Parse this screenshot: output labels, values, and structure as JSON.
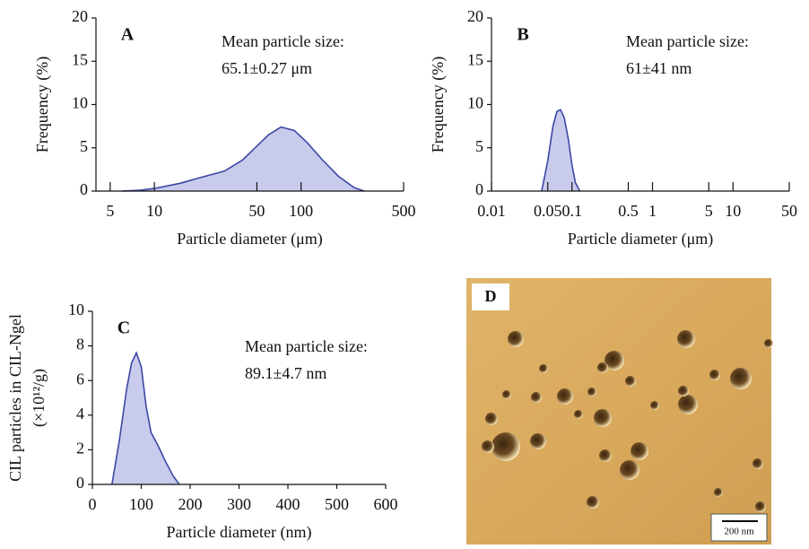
{
  "chart_data": [
    {
      "type": "area",
      "label": "A",
      "log_x": true,
      "color": "#3b47a3",
      "fill": "#c9cbec",
      "ylabel": [
        "Frequency (%)"
      ],
      "xlabel": "Particle diameter (μm)",
      "annotation": [
        "Mean particle size:",
        "65.1±0.27 μm"
      ],
      "x": [
        6,
        8,
        10,
        15,
        20,
        30,
        40,
        50,
        60,
        73,
        90,
        110,
        140,
        180,
        230,
        270
      ],
      "values": [
        0,
        0.1,
        0.3,
        0.9,
        1.5,
        2.3,
        3.6,
        5.2,
        6.5,
        7.4,
        7.0,
        5.6,
        3.6,
        1.7,
        0.4,
        0
      ],
      "xlim": [
        4,
        500
      ],
      "xticks": [
        5,
        10,
        50,
        100,
        500
      ],
      "ylim": [
        0,
        20
      ],
      "yticks": [
        0,
        5,
        10,
        15,
        20
      ]
    },
    {
      "type": "area",
      "label": "B",
      "log_x": true,
      "color": "#3b47a3",
      "fill": "#c9cbec",
      "ylabel": [
        "Frequency (%)"
      ],
      "xlabel": "Particle diameter (μm)",
      "annotation": [
        "Mean particle size:",
        "61±41 nm"
      ],
      "x": [
        0.042,
        0.05,
        0.058,
        0.065,
        0.072,
        0.08,
        0.09,
        0.1,
        0.11,
        0.125
      ],
      "values": [
        0,
        3.5,
        7.5,
        9.2,
        9.4,
        8.5,
        6.0,
        3.0,
        1.0,
        0
      ],
      "xlim": [
        0.01,
        50
      ],
      "xticks": [
        0.01,
        0.05,
        0.1,
        0.5,
        1,
        5,
        10,
        50
      ],
      "ylim": [
        0,
        20
      ],
      "yticks": [
        0,
        5,
        10,
        15,
        20
      ]
    },
    {
      "type": "area",
      "label": "C",
      "log_x": false,
      "color": "#3b47a3",
      "fill": "#c9cbec",
      "ylabel": [
        "CIL particles in CIL-Ngel",
        "(×10¹²/g)"
      ],
      "xlabel": "Particle diameter (nm)",
      "annotation": [
        "Mean particle size:",
        "89.1±4.7 nm"
      ],
      "x": [
        40,
        55,
        70,
        80,
        90,
        100,
        110,
        120,
        135,
        150,
        165,
        178
      ],
      "values": [
        0,
        2.5,
        5.5,
        7.0,
        7.6,
        6.8,
        4.5,
        3.0,
        2.2,
        1.3,
        0.5,
        0
      ],
      "xlim": [
        0,
        600
      ],
      "xticks": [
        0,
        100,
        200,
        300,
        400,
        500,
        600
      ],
      "ylim": [
        0,
        10
      ],
      "yticks": [
        0,
        2,
        4,
        6,
        8,
        10
      ]
    }
  ],
  "panel_d": {
    "label": "D",
    "scale_bar": "200 nm"
  }
}
